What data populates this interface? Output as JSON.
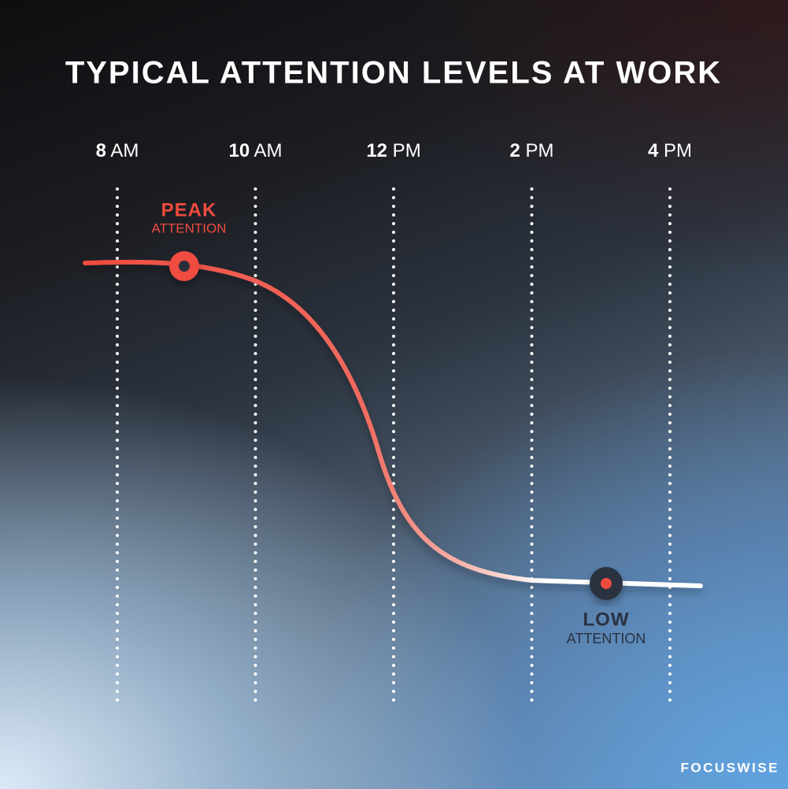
{
  "chart_data": {
    "type": "line",
    "title": "TYPICAL ATTENTION LEVELS AT WORK",
    "categories": [
      "8 AM",
      "10 AM",
      "12 PM",
      "2 PM",
      "4 PM"
    ],
    "annotations": [
      {
        "title": "PEAK",
        "text": "ATTENTION",
        "color": "#ef4b3f"
      },
      {
        "title": "LOW",
        "text": "ATTENTION",
        "color": "#2a3140"
      }
    ],
    "brand": "FOCUSWISE"
  }
}
